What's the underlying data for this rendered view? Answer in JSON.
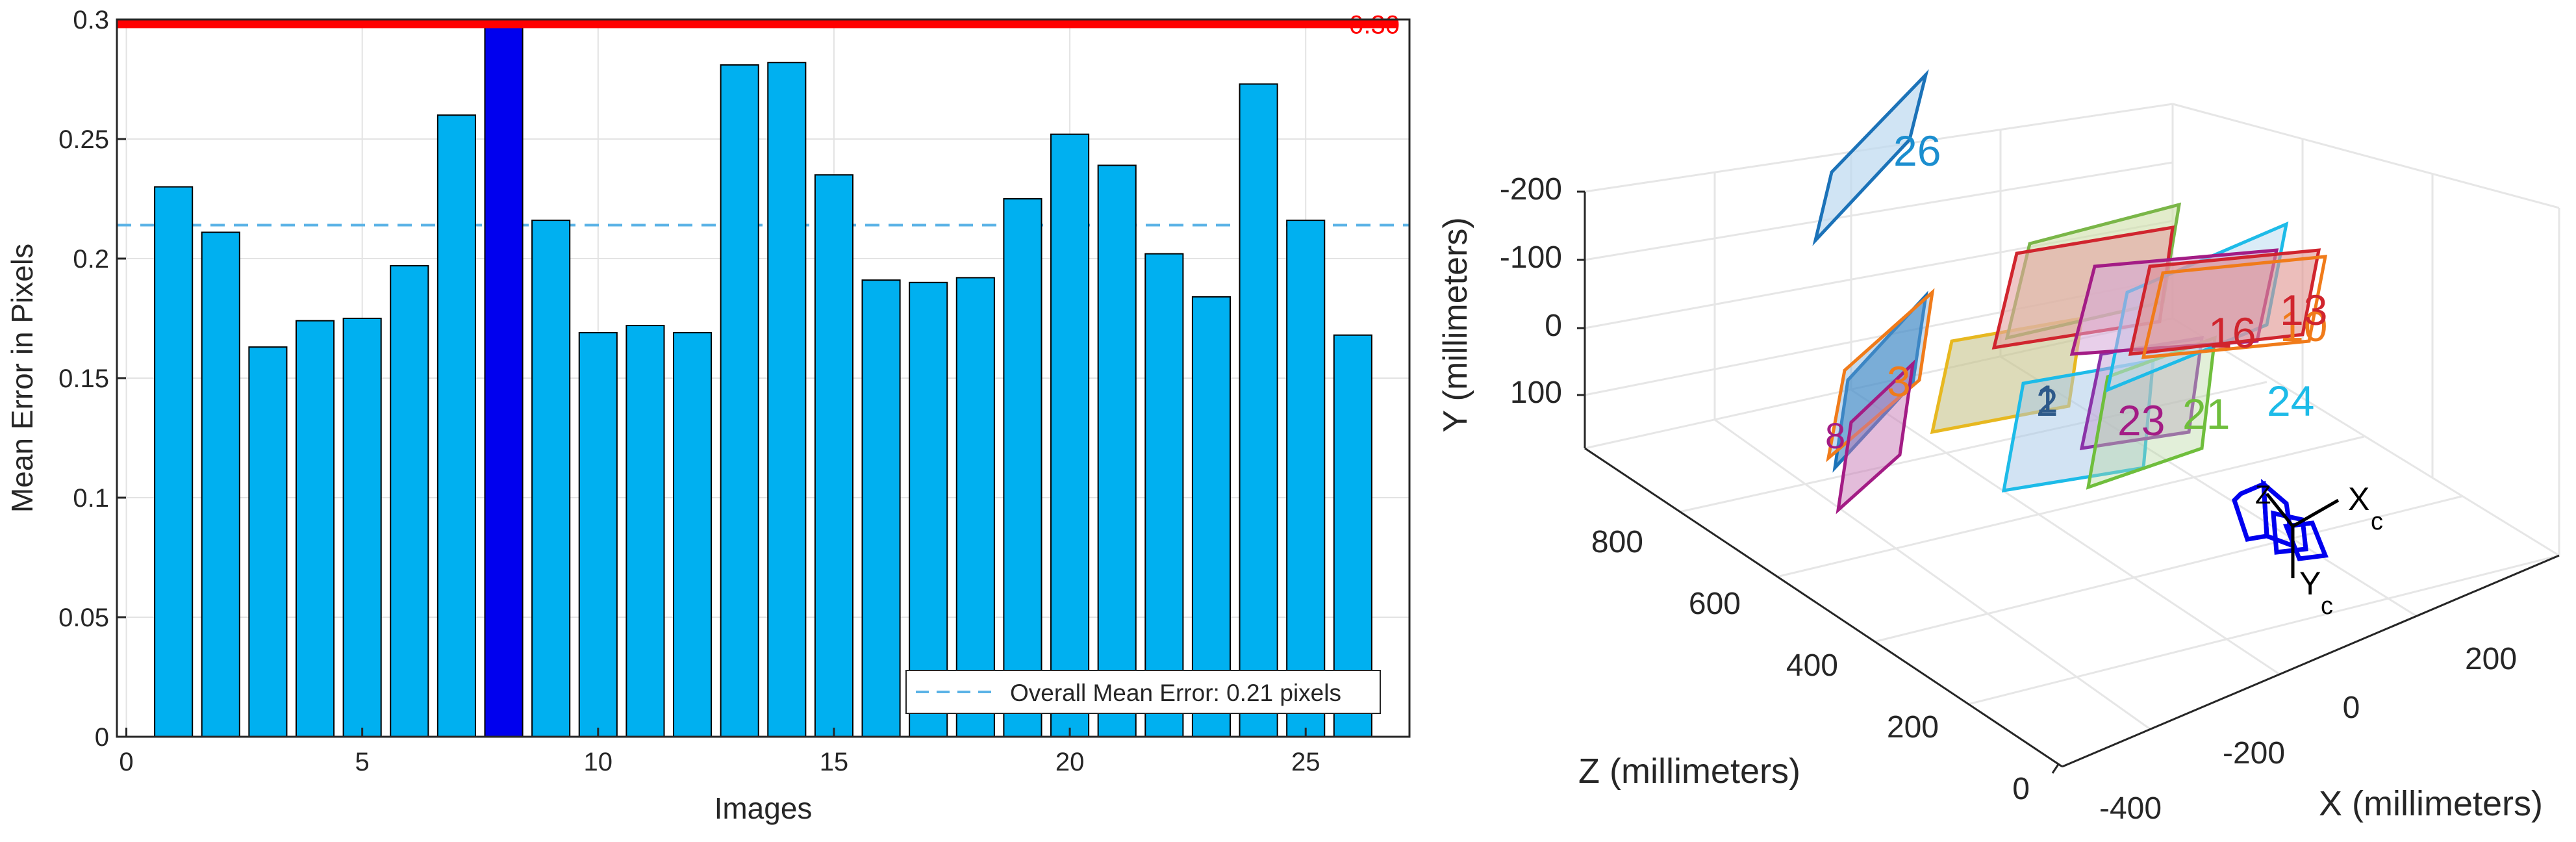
{
  "chart_data": [
    {
      "type": "bar",
      "title": "",
      "xlabel": "Images",
      "ylabel": "Mean Error in Pixels",
      "xlim": [
        -0.2,
        27.2
      ],
      "ylim": [
        0,
        0.3
      ],
      "x_ticks": [
        0,
        5,
        10,
        15,
        20,
        25
      ],
      "x_tick_labels": [
        "0",
        "5",
        "10",
        "15",
        "20",
        "25"
      ],
      "y_ticks": [
        0,
        0.05,
        0.1,
        0.15,
        0.2,
        0.25,
        0.3
      ],
      "y_tick_labels": [
        "0",
        "0.05",
        "0.1",
        "0.15",
        "0.2",
        "0.25",
        "0.3"
      ],
      "categories": [
        1,
        2,
        3,
        4,
        5,
        6,
        7,
        8,
        9,
        10,
        11,
        12,
        13,
        14,
        15,
        16,
        17,
        18,
        19,
        20,
        21,
        22,
        23,
        24,
        25,
        26
      ],
      "values": [
        0.23,
        0.211,
        0.163,
        0.174,
        0.175,
        0.197,
        0.26,
        0.298,
        0.216,
        0.169,
        0.172,
        0.169,
        0.281,
        0.282,
        0.235,
        0.191,
        0.19,
        0.192,
        0.225,
        0.252,
        0.239,
        0.202,
        0.184,
        0.273,
        0.216,
        0.168
      ],
      "highlighted_index": 8,
      "colors": {
        "bar": "#00b0f0",
        "bar_highlight": "#0000ee",
        "bar_edge": "#000000",
        "mean_line": "#5bb3e6",
        "threshold": "#ff0000",
        "grid": "#e3e3e3"
      },
      "mean_error": 0.214,
      "legend": "Overall Mean Error: 0.21 pixels",
      "legend_location": "bottom-right",
      "threshold": 0.298,
      "threshold_label": "0.30",
      "grid": true
    },
    {
      "type": "3d-scatter",
      "title": "",
      "xlabel": "X (millimeters)",
      "ylabel": "Y (millimeters)",
      "zlabel": "Z (millimeters)",
      "x_tick_labels": [
        "-400",
        "-200",
        "0",
        "200"
      ],
      "y_tick_labels": [
        "-200",
        "-100",
        "0",
        "100"
      ],
      "z_tick_labels": [
        "0",
        "200",
        "400",
        "600",
        "800"
      ],
      "camera_axis_labels": [
        "Z",
        "X",
        "Y"
      ],
      "camera_axis_subscript": "c",
      "plane_labels": [
        "26",
        "1",
        "2",
        "3",
        "8",
        "10",
        "13",
        "16",
        "21",
        "23",
        "24"
      ],
      "colors": {
        "camera": "#0000ee",
        "grid": "#e6e6e6"
      }
    }
  ]
}
